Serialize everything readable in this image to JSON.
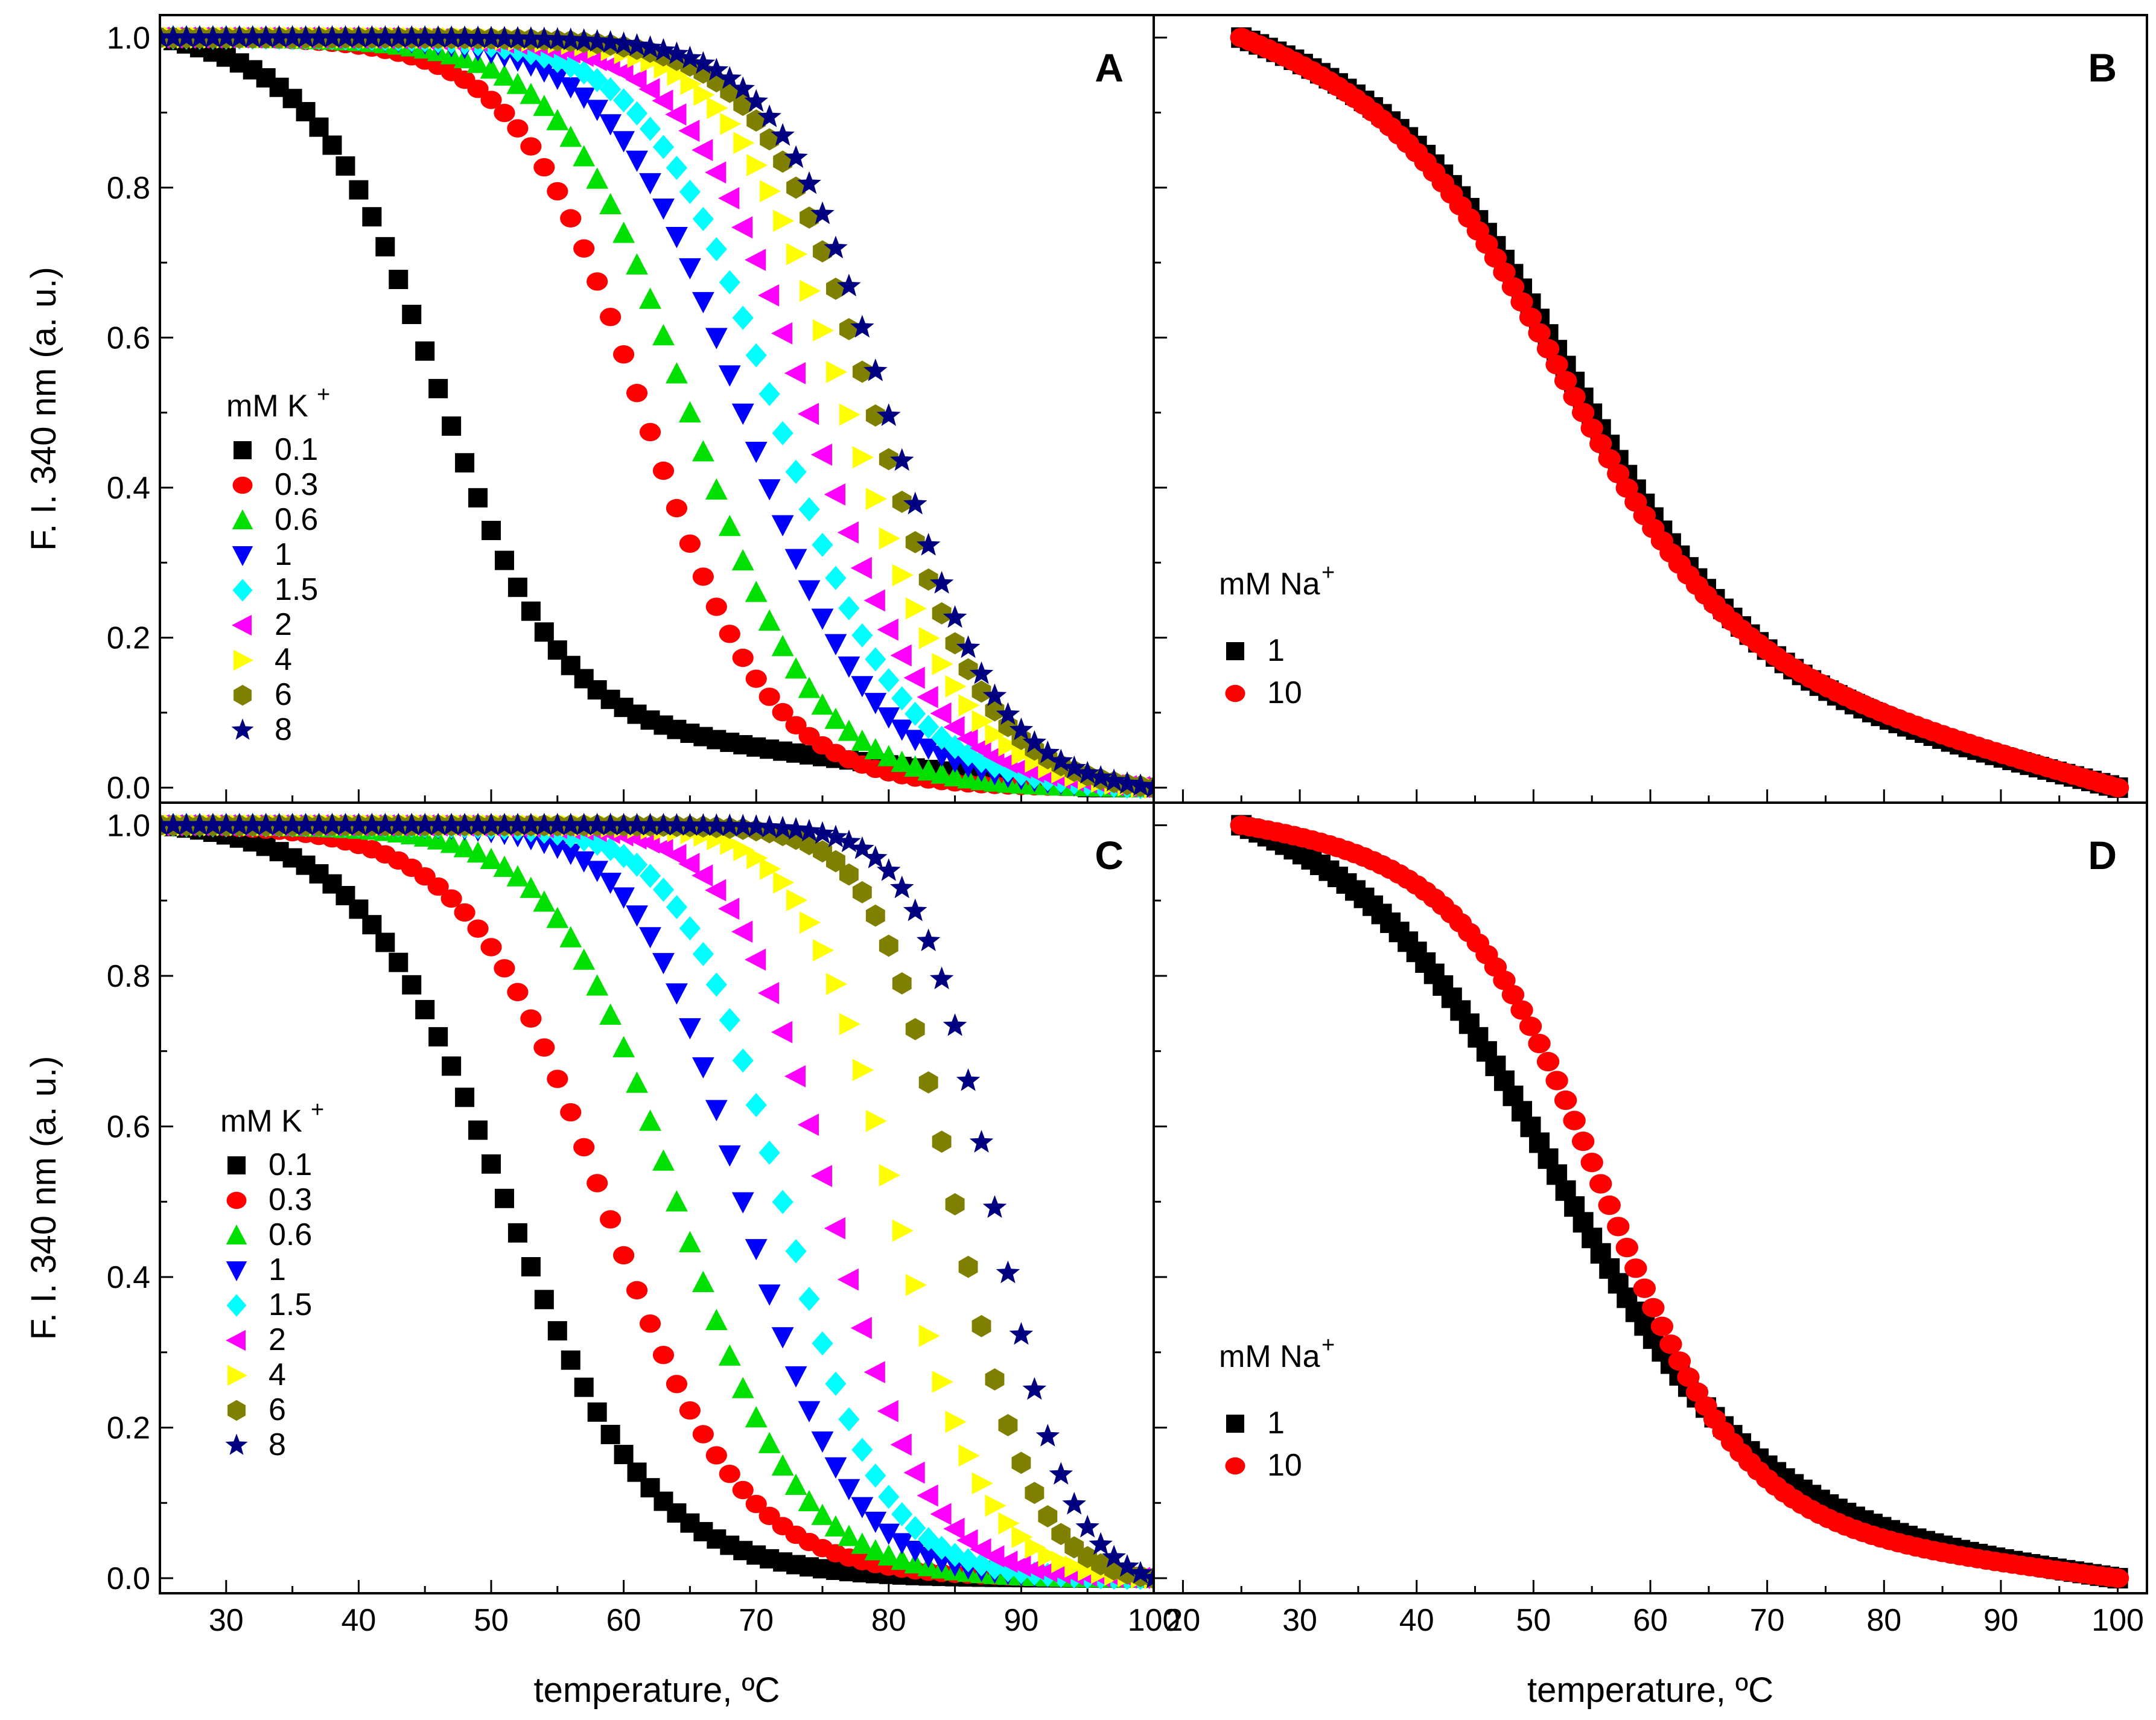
{
  "chart_data": [
    {
      "panel": "A",
      "type": "scatter",
      "ylabel": "F. I. 340 nm (a. u.)",
      "xlabel": "",
      "xlim": [
        25,
        100
      ],
      "ylim": [
        -0.02,
        1.03
      ],
      "xticks": [
        30,
        40,
        50,
        60,
        70,
        80,
        90,
        100
      ],
      "yticks": [
        "0.0",
        "0.2",
        "0.4",
        "0.6",
        "0.8",
        "1.0"
      ],
      "legend_title": "mM K",
      "legend_title_sup": "+",
      "series": [
        {
          "name": "0.1",
          "marker": "square",
          "color": "#000000",
          "tm": 46,
          "w": 4.5,
          "tail": 0.14,
          "tail_end": 95
        },
        {
          "name": "0.3",
          "marker": "circle",
          "color": "#ff0000",
          "tm": 61.5,
          "w": 4.8,
          "tail": 0.0
        },
        {
          "name": "0.6",
          "marker": "triangle-up",
          "color": "#00e000",
          "tm": 65,
          "w": 4.8,
          "tail": 0.0
        },
        {
          "name": "1",
          "marker": "triangle-down",
          "color": "#0000ff",
          "tm": 69,
          "w": 4.9,
          "tail": 0.0
        },
        {
          "name": "1.5",
          "marker": "diamond",
          "color": "#00ffff",
          "tm": 71.5,
          "w": 4.8,
          "tail": 0.0
        },
        {
          "name": "2",
          "marker": "triangle-left",
          "color": "#ff00ff",
          "tm": 74,
          "w": 4.6,
          "tail": 0.0
        },
        {
          "name": "4",
          "marker": "triangle-right",
          "color": "#ffff00",
          "tm": 77,
          "w": 4.4,
          "tail": 0.0
        },
        {
          "name": "6",
          "marker": "hexagon",
          "color": "#808000",
          "tm": 79,
          "w": 4.3,
          "tail": 0.0
        },
        {
          "name": "8",
          "marker": "star",
          "color": "#000080",
          "tm": 80,
          "w": 4.2,
          "tail": 0.0
        }
      ]
    },
    {
      "panel": "B",
      "type": "scatter",
      "ylabel": "",
      "xlabel": "",
      "xlim": [
        17.5,
        102.5
      ],
      "ylim": [
        -0.02,
        1.03
      ],
      "xticks": [
        20,
        30,
        40,
        50,
        60,
        70,
        80,
        90,
        100
      ],
      "yticks": [],
      "legend_title": "mM Na",
      "legend_title_sup": "+",
      "series": [
        {
          "name": "1",
          "marker": "square",
          "color": "#000000",
          "tm": 53.5,
          "w": 7.5,
          "tail": 0.28,
          "tail_end": 100
        },
        {
          "name": "10",
          "marker": "circle",
          "color": "#ff0000",
          "tm": 52.5,
          "w": 7.2,
          "tail": 0.32,
          "tail_end": 100
        }
      ]
    },
    {
      "panel": "C",
      "type": "scatter",
      "ylabel": "F. I. 340 nm (a. u.)",
      "xlabel": "temperature, ºC",
      "xlim": [
        25,
        100
      ],
      "ylim": [
        -0.02,
        1.03
      ],
      "xticks": [
        30,
        40,
        50,
        60,
        70,
        80,
        90,
        100
      ],
      "yticks": [
        "0.0",
        "0.2",
        "0.4",
        "0.6",
        "0.8",
        "1.0"
      ],
      "legend_title": "mM K",
      "legend_title_sup": "+",
      "series": [
        {
          "name": "0.1",
          "marker": "square",
          "color": "#000000",
          "tm": 51,
          "w": 5.5,
          "tail": 0.0
        },
        {
          "name": "0.3",
          "marker": "circle",
          "color": "#ff0000",
          "tm": 58.5,
          "w": 5.2,
          "tail": 0.0
        },
        {
          "name": "0.6",
          "marker": "triangle-up",
          "color": "#00e000",
          "tm": 64,
          "w": 4.6,
          "tail": 0.0
        },
        {
          "name": "1",
          "marker": "triangle-down",
          "color": "#0000ff",
          "tm": 69,
          "w": 4.0,
          "tail": 0.0
        },
        {
          "name": "1.5",
          "marker": "diamond",
          "color": "#00ffff",
          "tm": 72,
          "w": 3.8,
          "tail": 0.0
        },
        {
          "name": "2",
          "marker": "triangle-left",
          "color": "#ff00ff",
          "tm": 75.5,
          "w": 3.6,
          "tail": 0.0
        },
        {
          "name": "4",
          "marker": "triangle-right",
          "color": "#ffff00",
          "tm": 80.5,
          "w": 3.4,
          "tail": 0.0
        },
        {
          "name": "6",
          "marker": "hexagon",
          "color": "#808000",
          "tm": 85,
          "w": 3.0,
          "tail": 0.0
        },
        {
          "name": "8",
          "marker": "star",
          "color": "#000080",
          "tm": 88,
          "w": 2.9,
          "tail": 0.0
        }
      ]
    },
    {
      "panel": "D",
      "type": "scatter",
      "ylabel": "",
      "xlabel": "temperature, ºC",
      "xlim": [
        17.5,
        102.5
      ],
      "ylim": [
        -0.02,
        1.03
      ],
      "xticks": [
        20,
        30,
        40,
        50,
        60,
        70,
        80,
        90,
        100
      ],
      "yticks": [],
      "legend_title": "mM Na",
      "legend_title_sup": "+",
      "series": [
        {
          "name": "1",
          "marker": "square",
          "color": "#000000",
          "tm": 52,
          "w": 8.5,
          "tail": 0.14,
          "tail_end": 100
        },
        {
          "name": "10",
          "marker": "circle",
          "color": "#ff0000",
          "tm": 56,
          "w": 6.0,
          "tail": 0.14,
          "tail_end": 100
        }
      ]
    }
  ]
}
